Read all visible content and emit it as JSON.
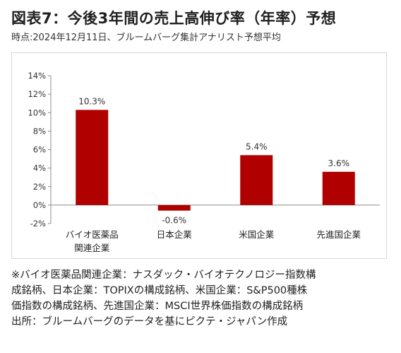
{
  "title": "図表7：今後3年間の売上高伸び率（年率）予想",
  "subtitle": "時点:2024年12月11日、ブルームバーグ集計アナリスト予想平均",
  "chart_data": {
    "type": "bar",
    "categories": [
      [
        "バイオ医薬品",
        "関連企業"
      ],
      [
        "日本企業"
      ],
      [
        "米国企業"
      ],
      [
        "先進国企業"
      ]
    ],
    "values": [
      10.3,
      -0.6,
      5.4,
      3.6
    ],
    "value_labels": [
      "10.3%",
      "-0.6%",
      "5.4%",
      "3.6%"
    ],
    "yticks": [
      14,
      12,
      10,
      8,
      6,
      4,
      2,
      0,
      -2
    ],
    "ytick_labels": [
      "14%",
      "12%",
      "10%",
      "8%",
      "6%",
      "4%",
      "2%",
      "0%",
      "-2%"
    ],
    "ylim": [
      -2,
      14
    ],
    "bar_color": "#b10000",
    "grid": false,
    "legend": "none"
  },
  "notes": [
    "※バイオ医薬品関連企業：ナスダック・バイオテクノロジー指数構",
    "成銘柄、日本企業：TOPIXの構成銘柄、米国企業：S&P500種株",
    "価指数の構成銘柄、先進国企業：MSCI世界株価指数の構成銘柄",
    "出所：ブルームバーグのデータを基にピクテ・ジャパン作成"
  ]
}
